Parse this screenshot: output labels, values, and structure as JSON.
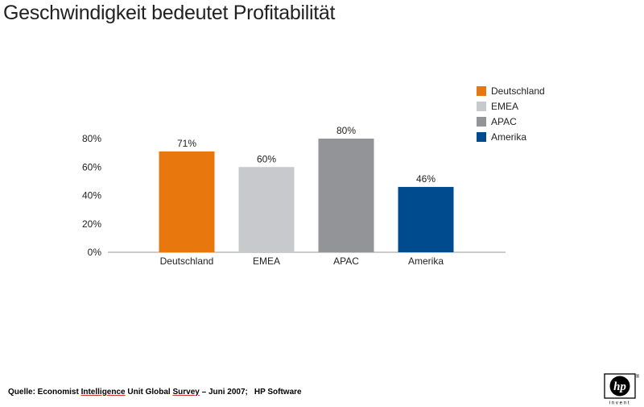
{
  "title": "Geschwindigkeit bedeutet Profitabilität",
  "chart_data": {
    "type": "bar",
    "title": "Geschwindigkeit bedeutet Profitabilität",
    "categories": [
      "Deutschland",
      "EMEA",
      "APAC",
      "Amerika"
    ],
    "values": [
      71,
      60,
      80,
      46
    ],
    "data_labels": [
      "71%",
      "60%",
      "80%",
      "46%"
    ],
    "colors": [
      "#E8780E",
      "#C8C9CC",
      "#939498",
      "#004B8D"
    ],
    "ylim": [
      0,
      80
    ],
    "yticks": [
      0,
      20,
      40,
      60,
      80
    ],
    "ytick_labels": [
      "0%",
      "20%",
      "40%",
      "60%",
      "80%"
    ],
    "xlabel": "",
    "ylabel": "",
    "grid": false,
    "legend_position": "top-right"
  },
  "legend": [
    {
      "label": "Deutschland",
      "color": "#E8780E"
    },
    {
      "label": "EMEA",
      "color": "#C8C9CC"
    },
    {
      "label": "APAC",
      "color": "#939498"
    },
    {
      "label": "Amerika",
      "color": "#004B8D"
    }
  ],
  "source": {
    "prefix": "Quelle: Economist ",
    "intelligence": "Intelligence",
    "mid": " Unit Global ",
    "survey": "Survey",
    "suffix": " – Juni 2007;",
    "publisher": "HP Software"
  },
  "logo": {
    "text": "hp",
    "tagline": "invent",
    "registered": "®"
  }
}
